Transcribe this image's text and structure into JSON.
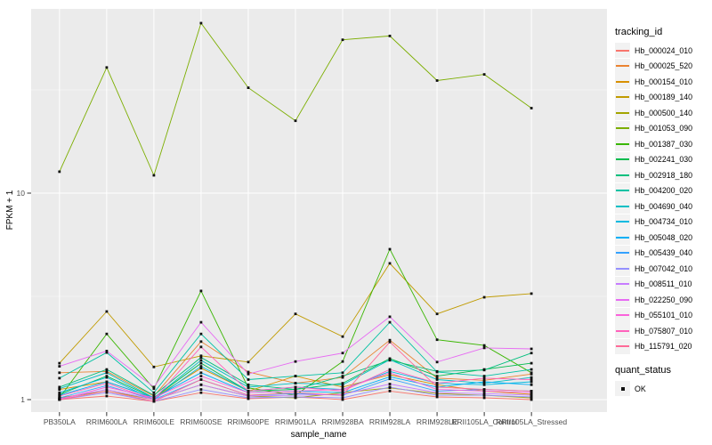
{
  "colors": {
    "panel_bg": "#EBEBEB",
    "grid_major": "#FFFFFF",
    "grid_minor": "#F7F7F7",
    "tick_mark": "#333333",
    "tick_text": "#4D4D4D",
    "axis_title": "#000000",
    "point": "#111111",
    "legend_key_bg": "#F2F2F2"
  },
  "legend": {
    "tracking_title": "tracking_id",
    "quant_title": "quant_status",
    "quant_items": [
      {
        "label": "OK",
        "marker": "black-square"
      }
    ]
  },
  "chart_data": {
    "type": "line",
    "title": "",
    "xlabel": "sample_name",
    "ylabel": "FPKM + 1",
    "y_scale": "log10",
    "y_ticks": [
      1,
      10
    ],
    "y_minor_ticks": [
      3.162,
      31.623
    ],
    "ylim": [
      0.88,
      79.6
    ],
    "grid": true,
    "legend_position": "right",
    "point_shape": "black-square",
    "categories": [
      "PB350LA",
      "RRIM600LA",
      "RRIM600LE",
      "RRIM600SE",
      "RRIM600PE",
      "RRIM901LA",
      "RRIM928BA",
      "RRIM928LA",
      "RRIM928LE",
      "RRII105LA_Control",
      "RRII105LA_Stressed"
    ],
    "series": [
      {
        "name": "Hb_000024_010",
        "color": "#F8766D",
        "values": [
          1.0,
          1.04,
          0.98,
          1.08,
          1.01,
          1.03,
          1.0,
          1.1,
          1.03,
          1.02,
          1.0
        ]
      },
      {
        "name": "Hb_000025_520",
        "color": "#EA8331",
        "values": [
          1.35,
          1.37,
          1.04,
          1.91,
          1.36,
          1.2,
          1.28,
          1.94,
          1.27,
          1.24,
          1.33
        ]
      },
      {
        "name": "Hb_000154_010",
        "color": "#D89000",
        "values": [
          1.12,
          1.22,
          1.02,
          1.42,
          1.1,
          1.3,
          1.15,
          1.32,
          1.18,
          1.1,
          1.06
        ]
      },
      {
        "name": "Hb_000189_140",
        "color": "#C09B00",
        "values": [
          1.5,
          2.67,
          1.44,
          1.63,
          1.52,
          2.6,
          2.02,
          4.57,
          2.6,
          3.13,
          3.26
        ]
      },
      {
        "name": "Hb_000500_140",
        "color": "#A3A500",
        "values": [
          1.02,
          1.1,
          1.0,
          1.18,
          1.04,
          1.02,
          1.08,
          1.14,
          1.07,
          1.05,
          1.02
        ]
      },
      {
        "name": "Hb_001053_090",
        "color": "#7CAE00",
        "values": [
          12.7,
          40.6,
          12.2,
          66.6,
          32.4,
          22.4,
          55.3,
          57.7,
          35.1,
          37.6,
          25.8
        ]
      },
      {
        "name": "Hb_001387_030",
        "color": "#39B600",
        "values": [
          1.02,
          2.08,
          1.13,
          3.36,
          1.14,
          1.05,
          1.53,
          5.35,
          1.95,
          1.83,
          1.35
        ]
      },
      {
        "name": "Hb_002241_030",
        "color": "#00BB4E",
        "values": [
          1.06,
          1.3,
          1.02,
          1.5,
          1.1,
          1.12,
          1.2,
          1.58,
          1.3,
          1.4,
          1.5
        ]
      },
      {
        "name": "Hb_002918_180",
        "color": "#00BF7D",
        "values": [
          1.15,
          1.4,
          1.05,
          1.6,
          1.18,
          1.12,
          1.3,
          1.55,
          1.37,
          1.39,
          1.68
        ]
      },
      {
        "name": "Hb_004200_020",
        "color": "#00C1A3",
        "values": [
          1.27,
          1.69,
          1.08,
          2.08,
          1.25,
          1.3,
          1.35,
          2.37,
          1.36,
          1.3,
          1.4
        ]
      },
      {
        "name": "Hb_004690_040",
        "color": "#00BFC4",
        "values": [
          1.13,
          1.35,
          1.02,
          1.55,
          1.15,
          1.2,
          1.18,
          1.56,
          1.25,
          1.2,
          1.28
        ]
      },
      {
        "name": "Hb_004734_010",
        "color": "#00BAE0",
        "values": [
          1.08,
          1.28,
          1.0,
          1.45,
          1.1,
          1.15,
          1.12,
          1.37,
          1.2,
          1.18,
          1.22
        ]
      },
      {
        "name": "Hb_005048_020",
        "color": "#00B0F6",
        "values": [
          1.05,
          1.22,
          1.02,
          1.35,
          1.08,
          1.1,
          1.08,
          1.29,
          1.15,
          1.22,
          1.18
        ]
      },
      {
        "name": "Hb_005439_040",
        "color": "#35A2FF",
        "values": [
          1.02,
          1.17,
          1.0,
          1.25,
          1.05,
          1.07,
          1.05,
          1.26,
          1.1,
          1.12,
          1.1
        ]
      },
      {
        "name": "Hb_007042_010",
        "color": "#9590FF",
        "values": [
          1.0,
          1.08,
          0.98,
          1.12,
          1.02,
          1.03,
          1.02,
          1.15,
          1.05,
          1.05,
          1.03
        ]
      },
      {
        "name": "Hb_008511_010",
        "color": "#C77CFF",
        "values": [
          1.01,
          1.12,
          1.0,
          1.18,
          1.04,
          1.05,
          1.06,
          1.19,
          1.08,
          1.07,
          1.05
        ]
      },
      {
        "name": "Hb_022250_090",
        "color": "#E76BF3",
        "values": [
          1.45,
          1.72,
          1.15,
          2.37,
          1.33,
          1.53,
          1.68,
          2.52,
          1.52,
          1.78,
          1.76
        ]
      },
      {
        "name": "Hb_055101_010",
        "color": "#FA62DB",
        "values": [
          1.0,
          1.15,
          1.02,
          1.3,
          1.08,
          1.1,
          1.12,
          1.35,
          1.12,
          1.1,
          1.08
        ]
      },
      {
        "name": "Hb_075807_010",
        "color": "#FF62BC",
        "values": [
          1.04,
          1.2,
          1.0,
          1.8,
          1.1,
          1.15,
          1.1,
          1.4,
          1.2,
          1.27,
          1.25
        ]
      },
      {
        "name": "Hb_115791_020",
        "color": "#FF6A98",
        "values": [
          1.0,
          1.1,
          0.98,
          1.25,
          1.05,
          1.08,
          1.05,
          1.9,
          1.15,
          1.12,
          1.1
        ]
      }
    ]
  }
}
